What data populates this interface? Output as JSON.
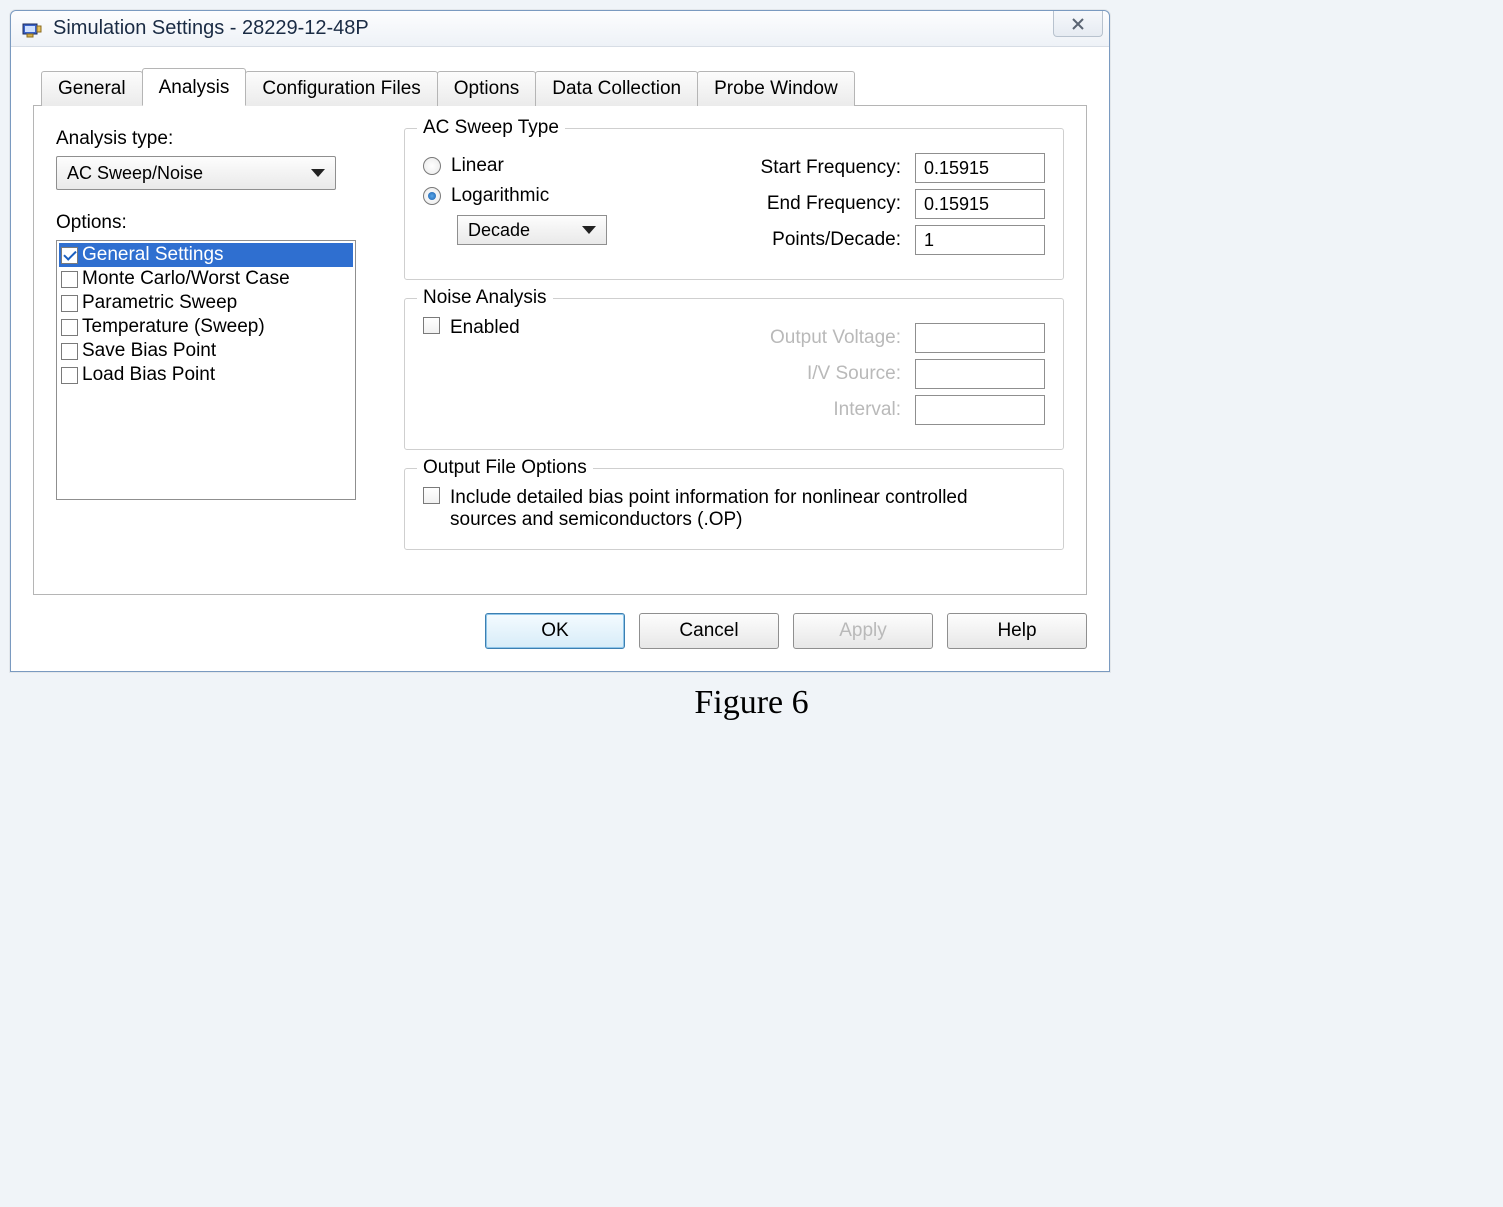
{
  "window": {
    "title": "Simulation Settings - 28229-12-48P"
  },
  "tabs": [
    "General",
    "Analysis",
    "Configuration Files",
    "Options",
    "Data Collection",
    "Probe Window"
  ],
  "active_tab_index": 1,
  "left": {
    "analysis_type_label": "Analysis type:",
    "analysis_type_value": "AC Sweep/Noise",
    "options_label": "Options:",
    "options": [
      {
        "label": "General Settings",
        "checked": true,
        "selected": true
      },
      {
        "label": "Monte Carlo/Worst Case",
        "checked": false,
        "selected": false
      },
      {
        "label": "Parametric Sweep",
        "checked": false,
        "selected": false
      },
      {
        "label": "Temperature (Sweep)",
        "checked": false,
        "selected": false
      },
      {
        "label": "Save Bias Point",
        "checked": false,
        "selected": false
      },
      {
        "label": "Load Bias Point",
        "checked": false,
        "selected": false
      }
    ]
  },
  "sweep": {
    "legend": "AC Sweep Type",
    "radio_linear": "Linear",
    "radio_log": "Logarithmic",
    "selected": "log",
    "scale_value": "Decade",
    "start_label": "Start Frequency:",
    "start_value": "0.15915",
    "end_label": "End Frequency:",
    "end_value": "0.15915",
    "points_label": "Points/Decade:",
    "points_value": "1"
  },
  "noise": {
    "legend": "Noise Analysis",
    "enabled_label": "Enabled",
    "enabled_checked": false,
    "output_label": "Output Voltage:",
    "iv_label": "I/V Source:",
    "interval_label": "Interval:"
  },
  "outfile": {
    "legend": "Output File Options",
    "include_label": "Include detailed bias point information for nonlinear controlled sources and semiconductors (.OP)",
    "include_checked": false
  },
  "buttons": {
    "ok": "OK",
    "cancel": "Cancel",
    "apply": "Apply",
    "help": "Help"
  },
  "figure_caption": "Figure 6"
}
